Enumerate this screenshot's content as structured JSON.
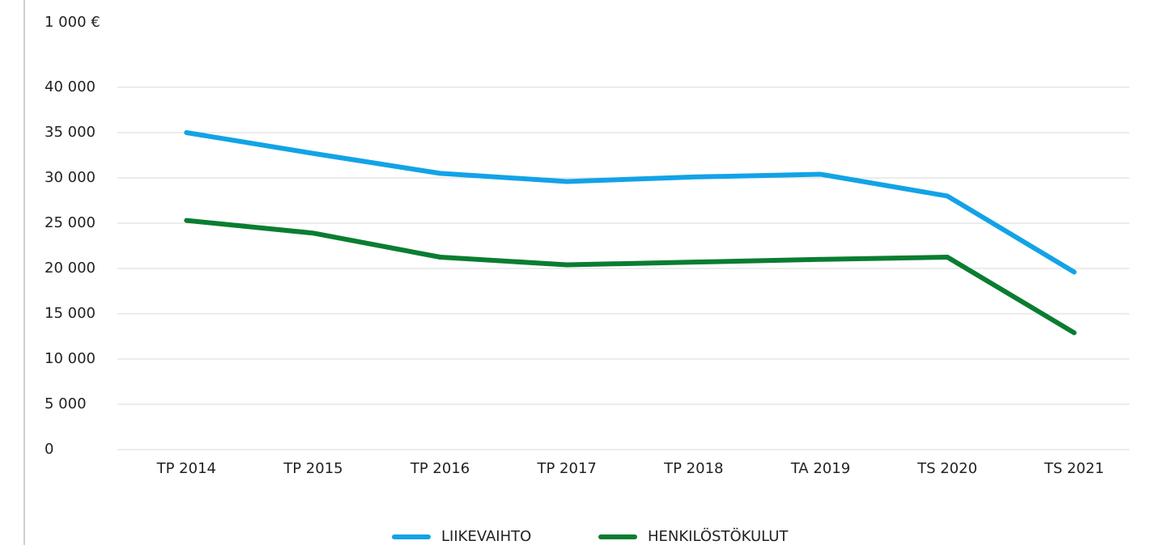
{
  "chart_data": {
    "type": "line",
    "y_unit_label": "1 000 €",
    "categories": [
      "TP 2014",
      "TP 2015",
      "TP 2016",
      "TP 2017",
      "TP 2018",
      "TA 2019",
      "TS 2020",
      "TS 2021"
    ],
    "series": [
      {
        "name": "LIIKEVAIHTO",
        "color": "#12a3e6",
        "values": [
          35000,
          32700,
          30500,
          29600,
          30100,
          30400,
          28000,
          19600
        ]
      },
      {
        "name": "HENKILÖSTÖKULUT",
        "color": "#0a7d31",
        "values": [
          25300,
          23900,
          21250,
          20400,
          20700,
          21000,
          21250,
          12900
        ]
      }
    ],
    "ylim": [
      0,
      40000
    ],
    "yticks": [
      {
        "value": 0,
        "label": "0"
      },
      {
        "value": 5000,
        "label": "5 000"
      },
      {
        "value": 10000,
        "label": "10 000"
      },
      {
        "value": 15000,
        "label": "15 000"
      },
      {
        "value": 20000,
        "label": "20 000"
      },
      {
        "value": 25000,
        "label": "25 000"
      },
      {
        "value": 30000,
        "label": "30 000"
      },
      {
        "value": 35000,
        "label": "35 000"
      },
      {
        "value": 40000,
        "label": "40 000"
      }
    ],
    "grid": true,
    "legend": "bottom"
  }
}
